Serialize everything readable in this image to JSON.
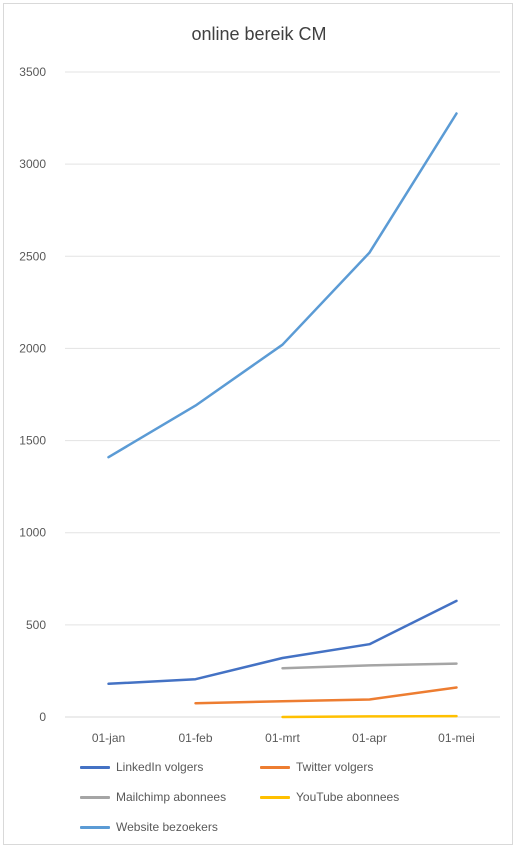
{
  "chart_data": {
    "type": "line",
    "title": "online bereik CM",
    "xlabel": "",
    "ylabel": "",
    "categories": [
      "01-jan",
      "01-feb",
      "01-mrt",
      "01-apr",
      "01-mei"
    ],
    "ylim": [
      0,
      3500
    ],
    "yticks": [
      0,
      500,
      1000,
      1500,
      2000,
      2500,
      3000,
      3500
    ],
    "grid": "horizontal",
    "legend_position": "bottom",
    "series": [
      {
        "name": "LinkedIn volgers",
        "color": "#4472c4",
        "values": [
          180,
          205,
          320,
          395,
          630
        ]
      },
      {
        "name": "Twitter volgers",
        "color": "#ed7d31",
        "values": [
          null,
          75,
          85,
          95,
          160
        ]
      },
      {
        "name": "Mailchimp abonnees",
        "color": "#a5a5a5",
        "values": [
          null,
          null,
          265,
          280,
          290
        ]
      },
      {
        "name": "YouTube abonnees",
        "color": "#ffc000",
        "values": [
          null,
          null,
          0,
          3,
          5
        ]
      },
      {
        "name": "Website bezoekers",
        "color": "#5b9bd5",
        "values": [
          1410,
          1690,
          2020,
          2520,
          3275
        ]
      }
    ]
  }
}
